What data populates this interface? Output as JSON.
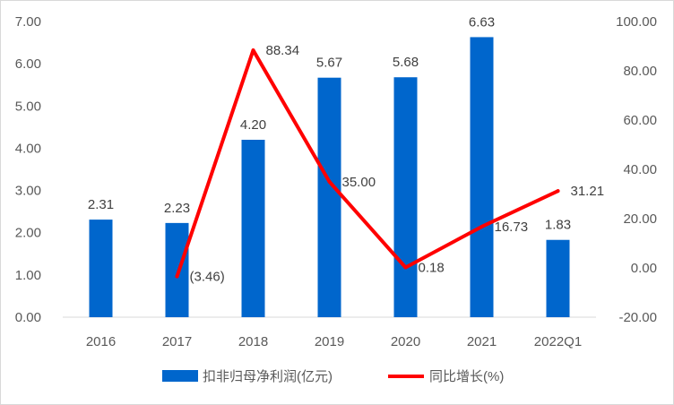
{
  "chart_data": {
    "type": "bar",
    "categories": [
      "2016",
      "2017",
      "2018",
      "2019",
      "2020",
      "2021",
      "2022Q1"
    ],
    "series": [
      {
        "name": "扣非归母净利润(亿元)",
        "type": "bar",
        "axis": "left",
        "values": [
          2.31,
          2.23,
          4.2,
          5.67,
          5.68,
          6.63,
          1.83
        ],
        "labels": [
          "2.31",
          "2.23",
          "4.20",
          "5.67",
          "5.68",
          "6.63",
          "1.83"
        ],
        "color": "#0066CC"
      },
      {
        "name": "同比增长(%)",
        "type": "line",
        "axis": "right",
        "values": [
          null,
          -3.46,
          88.34,
          35.0,
          0.18,
          16.73,
          31.21
        ],
        "labels": [
          "",
          "(3.46)",
          "88.34",
          "35.00",
          "0.18",
          "16.73",
          "31.21"
        ],
        "label_colors": [
          "",
          "#E00000",
          "",
          "",
          "",
          "",
          ""
        ],
        "color": "#FF0000"
      }
    ],
    "y_left": {
      "lim": [
        0,
        7
      ],
      "ticks": [
        "0.00",
        "1.00",
        "2.00",
        "3.00",
        "4.00",
        "5.00",
        "6.00",
        "7.00"
      ]
    },
    "y_right": {
      "lim": [
        -20,
        100
      ],
      "ticks": [
        "-20.00",
        "0.00",
        "20.00",
        "40.00",
        "60.00",
        "80.00",
        "100.00"
      ]
    },
    "grid": false,
    "legend_position": "bottom"
  }
}
